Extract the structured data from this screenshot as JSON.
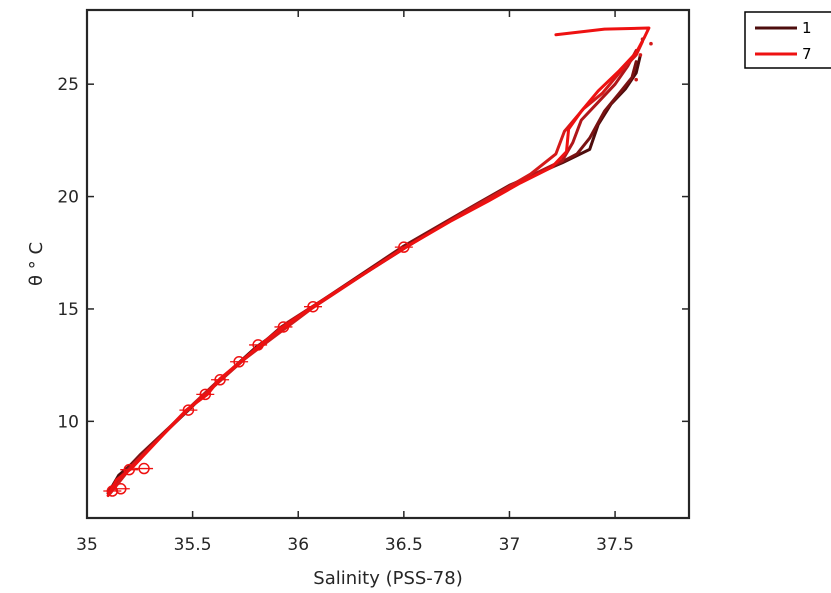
{
  "chart_data": {
    "type": "line",
    "title": "",
    "xlabel": "Salinity (PSS-78)",
    "ylabel": "θ ° C",
    "xlim": [
      35,
      37.85
    ],
    "ylim": [
      5.7,
      28.3
    ],
    "xticks": [
      35,
      35.5,
      36,
      36.5,
      37,
      37.5
    ],
    "xtick_labels": [
      "35",
      "35.5",
      "36",
      "36.5",
      "37",
      "37.5"
    ],
    "yticks": [
      10,
      15,
      20,
      25
    ],
    "ytick_labels": [
      "10",
      "15",
      "20",
      "25"
    ],
    "grid": false,
    "legend_position": "outside-top-right",
    "legend": [
      {
        "label": "1",
        "color": "#4d0d0d"
      },
      {
        "label": "7",
        "color": "#ee1111"
      }
    ],
    "series": [
      {
        "color": "#4d0d0d",
        "points": [
          [
            35.1,
            6.8
          ],
          [
            35.15,
            7.6
          ],
          [
            35.2,
            8.0
          ],
          [
            35.3,
            8.9
          ],
          [
            35.48,
            10.5
          ],
          [
            35.6,
            11.6
          ],
          [
            35.8,
            13.3
          ],
          [
            36.07,
            15.1
          ],
          [
            36.3,
            16.5
          ],
          [
            36.5,
            17.7
          ],
          [
            36.75,
            19.1
          ],
          [
            36.95,
            20.2
          ],
          [
            37.1,
            20.9
          ],
          [
            37.25,
            21.5
          ],
          [
            37.38,
            22.1
          ],
          [
            37.42,
            23.2
          ],
          [
            37.48,
            24.1
          ],
          [
            37.55,
            24.8
          ],
          [
            37.6,
            25.5
          ],
          [
            37.62,
            26.3
          ]
        ]
      },
      {
        "color": "#7a1313",
        "points": [
          [
            35.12,
            7.0
          ],
          [
            35.18,
            7.8
          ],
          [
            35.25,
            8.5
          ],
          [
            35.5,
            10.7
          ],
          [
            35.7,
            12.4
          ],
          [
            35.92,
            14.2
          ],
          [
            36.1,
            15.3
          ],
          [
            36.5,
            17.8
          ],
          [
            36.85,
            19.7
          ],
          [
            37.0,
            20.5
          ],
          [
            37.2,
            21.3
          ],
          [
            37.32,
            21.9
          ],
          [
            37.38,
            22.6
          ],
          [
            37.45,
            23.8
          ],
          [
            37.52,
            24.6
          ],
          [
            37.58,
            25.3
          ],
          [
            37.6,
            26.0
          ]
        ]
      },
      {
        "color": "#b0161a",
        "points": [
          [
            35.1,
            6.9
          ],
          [
            35.2,
            7.9
          ],
          [
            35.45,
            10.3
          ],
          [
            35.62,
            11.8
          ],
          [
            35.95,
            14.4
          ],
          [
            36.2,
            15.9
          ],
          [
            36.52,
            17.8
          ],
          [
            36.8,
            19.4
          ],
          [
            37.05,
            20.7
          ],
          [
            37.25,
            21.6
          ],
          [
            37.3,
            22.4
          ],
          [
            37.34,
            23.4
          ],
          [
            37.42,
            24.2
          ],
          [
            37.5,
            25.0
          ],
          [
            37.56,
            25.8
          ],
          [
            37.6,
            26.5
          ]
        ]
      },
      {
        "color": "#d41a1a",
        "points": [
          [
            35.11,
            6.8
          ],
          [
            35.22,
            8.1
          ],
          [
            35.52,
            10.9
          ],
          [
            35.75,
            12.8
          ],
          [
            36.06,
            15.0
          ],
          [
            36.48,
            17.6
          ],
          [
            36.9,
            19.9
          ],
          [
            37.1,
            21.0
          ],
          [
            37.22,
            21.9
          ],
          [
            37.26,
            22.9
          ],
          [
            37.35,
            23.9
          ],
          [
            37.44,
            24.6
          ],
          [
            37.52,
            25.5
          ],
          [
            37.6,
            26.3
          ],
          [
            37.63,
            26.9
          ]
        ]
      },
      {
        "color": "#ee1111",
        "points": [
          [
            35.1,
            6.7
          ],
          [
            35.14,
            7.4
          ],
          [
            35.21,
            7.9
          ],
          [
            35.35,
            9.3
          ],
          [
            35.47,
            10.5
          ],
          [
            35.57,
            11.2
          ],
          [
            35.63,
            11.9
          ],
          [
            35.72,
            12.6
          ],
          [
            35.82,
            13.4
          ],
          [
            35.93,
            14.2
          ],
          [
            36.07,
            15.1
          ],
          [
            36.3,
            16.5
          ],
          [
            36.5,
            17.7
          ],
          [
            36.72,
            18.9
          ],
          [
            36.9,
            19.8
          ],
          [
            37.05,
            20.6
          ],
          [
            37.2,
            21.3
          ],
          [
            37.27,
            22.0
          ],
          [
            37.28,
            23.0
          ],
          [
            37.34,
            23.8
          ],
          [
            37.42,
            24.7
          ],
          [
            37.52,
            25.6
          ],
          [
            37.6,
            26.4
          ],
          [
            37.64,
            27.1
          ],
          [
            37.66,
            27.5
          ],
          [
            37.45,
            27.45
          ],
          [
            37.22,
            27.2
          ]
        ]
      }
    ],
    "circle_markers": [
      [
        35.12,
        6.9
      ],
      [
        35.16,
        7.0
      ],
      [
        35.2,
        7.85
      ],
      [
        35.27,
        7.9
      ],
      [
        35.48,
        10.5
      ],
      [
        35.56,
        11.2
      ],
      [
        35.63,
        11.85
      ],
      [
        35.72,
        12.65
      ],
      [
        35.81,
        13.4
      ],
      [
        35.93,
        14.2
      ],
      [
        36.07,
        15.1
      ],
      [
        36.5,
        17.75
      ]
    ],
    "scatter_dots": [
      [
        37.67,
        26.8
      ],
      [
        37.62,
        26.3
      ],
      [
        37.55,
        25.8
      ],
      [
        37.6,
        25.2
      ],
      [
        37.63,
        27.0
      ]
    ]
  }
}
